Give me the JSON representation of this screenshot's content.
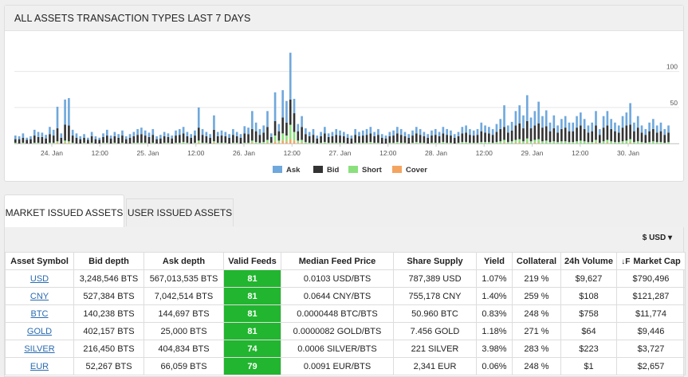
{
  "panel": {
    "title": "ALL ASSETS TRANSACTION TYPES LAST 7 DAYS"
  },
  "tabs": {
    "market": "MARKET ISSUED ASSETS",
    "user": "USER ISSUED ASSETS"
  },
  "currency_selector": "$ USD ▾",
  "sort_icon": "↓F",
  "table": {
    "headers": [
      "Asset Symbol",
      "Bid depth",
      "Ask depth",
      "Valid Feeds",
      "Median Feed Price",
      "Share Supply",
      "Yield",
      "Collateral",
      "24h Volume",
      "Market Cap"
    ],
    "rows": [
      [
        "USD",
        "3,248,546 BTS",
        "567,013,535 BTS",
        "81",
        "0.0103 USD/BTS",
        "787,389 USD",
        "1.07%",
        "219 %",
        "$9,627",
        "$790,496"
      ],
      [
        "CNY",
        "527,384 BTS",
        "7,042,514 BTS",
        "81",
        "0.0644 CNY/BTS",
        "755,178 CNY",
        "1.40%",
        "259 %",
        "$108",
        "$121,287"
      ],
      [
        "BTC",
        "140,238 BTS",
        "144,697 BTS",
        "81",
        "0.0000448 BTC/BTS",
        "50.960 BTC",
        "0.83%",
        "248 %",
        "$758",
        "$11,774"
      ],
      [
        "GOLD",
        "402,157 BTS",
        "25,000 BTS",
        "81",
        "0.0000082 GOLD/BTS",
        "7.456 GOLD",
        "1.18%",
        "271 %",
        "$64",
        "$9,446"
      ],
      [
        "SILVER",
        "216,450 BTS",
        "404,834 BTS",
        "74",
        "0.0006 SILVER/BTS",
        "221 SILVER",
        "3.98%",
        "283 %",
        "$223",
        "$3,727"
      ],
      [
        "EUR",
        "52,267 BTS",
        "66,059 BTS",
        "79",
        "0.0091 EUR/BTS",
        "2,341 EUR",
        "0.06%",
        "248 %",
        "$1",
        "$2,657"
      ]
    ]
  },
  "chart_data": {
    "type": "bar",
    "stacked": true,
    "x_tick_labels": [
      "24. Jan",
      "12:00",
      "25. Jan",
      "12:00",
      "26. Jan",
      "12:00",
      "27. Jan",
      "12:00",
      "28. Jan",
      "12:00",
      "29. Jan",
      "12:00",
      "30. Jan"
    ],
    "y_tick_labels": [
      "50",
      "100"
    ],
    "ylim": [
      0,
      135
    ],
    "legend_position": "bottom-center",
    "colors": {
      "Ask": "#6fa8dc",
      "Bid": "#333333",
      "Short": "#8be07d",
      "Cover": "#f4a460"
    },
    "series": [
      {
        "name": "Ask",
        "values": [
          5,
          4,
          6,
          3,
          4,
          8,
          7,
          6,
          5,
          10,
          8,
          30,
          6,
          35,
          38,
          8,
          6,
          4,
          5,
          3,
          6,
          4,
          3,
          5,
          8,
          4,
          6,
          5,
          7,
          4,
          5,
          6,
          8,
          9,
          7,
          6,
          8,
          4,
          5,
          6,
          5,
          4,
          7,
          8,
          9,
          6,
          5,
          7,
          28,
          8,
          6,
          5,
          20,
          6,
          7,
          6,
          5,
          8,
          6,
          5,
          10,
          9,
          25,
          12,
          8,
          10,
          22,
          5,
          40,
          10,
          38,
          30,
          65,
          20,
          10,
          15,
          8,
          6,
          8,
          4,
          6,
          9,
          5,
          6,
          8,
          7,
          6,
          5,
          4,
          8,
          6,
          7,
          8,
          9,
          6,
          8,
          5,
          4,
          6,
          7,
          9,
          8,
          6,
          5,
          7,
          9,
          8,
          6,
          5,
          7,
          8,
          6,
          9,
          8,
          7,
          5,
          6,
          9,
          10,
          8,
          7,
          8,
          12,
          10,
          9,
          8,
          11,
          14,
          30,
          10,
          12,
          20,
          25,
          18,
          36,
          15,
          20,
          30,
          16,
          22,
          12,
          18,
          10,
          14,
          16,
          12,
          12,
          16,
          18,
          14,
          10,
          12,
          20,
          8,
          16,
          20,
          14,
          12,
          10,
          16,
          18,
          30,
          12,
          16,
          10,
          8,
          12,
          14,
          10,
          12,
          8,
          10
        ]
      },
      {
        "name": "Bid",
        "values": [
          5,
          6,
          7,
          5,
          6,
          10,
          8,
          9,
          7,
          12,
          10,
          18,
          8,
          22,
          22,
          10,
          8,
          6,
          7,
          5,
          9,
          6,
          5,
          8,
          10,
          7,
          9,
          8,
          10,
          6,
          8,
          9,
          11,
          12,
          10,
          9,
          11,
          6,
          7,
          9,
          8,
          7,
          10,
          11,
          12,
          9,
          8,
          10,
          18,
          11,
          9,
          8,
          16,
          9,
          10,
          9,
          8,
          11,
          9,
          8,
          13,
          12,
          16,
          15,
          11,
          13,
          18,
          8,
          20,
          13,
          22,
          18,
          35,
          26,
          13,
          18,
          11,
          9,
          11,
          7,
          9,
          12,
          8,
          9,
          11,
          10,
          9,
          8,
          7,
          11,
          9,
          10,
          11,
          12,
          9,
          11,
          8,
          7,
          9,
          10,
          12,
          11,
          9,
          8,
          10,
          12,
          11,
          9,
          8,
          10,
          11,
          9,
          12,
          11,
          10,
          8,
          9,
          12,
          13,
          11,
          10,
          11,
          15,
          13,
          12,
          11,
          14,
          17,
          18,
          13,
          15,
          20,
          22,
          18,
          24,
          18,
          20,
          22,
          19,
          20,
          15,
          18,
          13,
          17,
          19,
          15,
          15,
          19,
          21,
          17,
          13,
          15,
          20,
          11,
          19,
          20,
          17,
          15,
          13,
          19,
          21,
          20,
          15,
          19,
          13,
          11,
          15,
          17,
          13,
          15,
          11,
          13
        ]
      },
      {
        "name": "Short",
        "values": [
          1,
          0,
          1,
          0,
          0,
          1,
          1,
          0,
          0,
          1,
          1,
          2,
          0,
          3,
          2,
          1,
          0,
          0,
          1,
          0,
          1,
          0,
          0,
          1,
          1,
          0,
          1,
          0,
          1,
          0,
          0,
          1,
          1,
          1,
          1,
          0,
          1,
          0,
          0,
          1,
          1,
          0,
          1,
          1,
          2,
          1,
          0,
          1,
          3,
          1,
          1,
          0,
          2,
          1,
          1,
          1,
          0,
          1,
          1,
          0,
          1,
          1,
          3,
          2,
          1,
          2,
          4,
          1,
          8,
          3,
          10,
          8,
          20,
          12,
          3,
          4,
          2,
          1,
          1,
          0,
          1,
          2,
          1,
          1,
          1,
          1,
          1,
          0,
          0,
          1,
          1,
          1,
          1,
          2,
          1,
          1,
          0,
          0,
          1,
          1,
          2,
          1,
          1,
          0,
          1,
          2,
          1,
          1,
          0,
          1,
          1,
          1,
          2,
          1,
          1,
          0,
          1,
          2,
          2,
          1,
          1,
          1,
          2,
          2,
          2,
          1,
          2,
          3,
          4,
          2,
          3,
          4,
          5,
          3,
          6,
          3,
          4,
          5,
          3,
          4,
          2,
          3,
          2,
          3,
          3,
          2,
          2,
          3,
          4,
          3,
          2,
          2,
          4,
          1,
          3,
          4,
          3,
          2,
          2,
          3,
          4,
          5,
          2,
          3,
          2,
          1,
          2,
          3,
          2,
          2,
          1,
          2
        ]
      },
      {
        "name": "Cover",
        "values": [
          0,
          0,
          0,
          0,
          0,
          0,
          0,
          0,
          0,
          0,
          0,
          1,
          0,
          1,
          1,
          0,
          0,
          0,
          0,
          0,
          0,
          0,
          0,
          0,
          0,
          0,
          0,
          0,
          0,
          0,
          0,
          0,
          0,
          0,
          0,
          0,
          0,
          0,
          0,
          0,
          0,
          0,
          0,
          0,
          0,
          0,
          0,
          0,
          1,
          0,
          0,
          0,
          1,
          0,
          0,
          0,
          0,
          0,
          0,
          0,
          0,
          0,
          1,
          0,
          0,
          0,
          1,
          0,
          3,
          1,
          4,
          3,
          6,
          4,
          1,
          1,
          0,
          0,
          0,
          0,
          0,
          0,
          0,
          0,
          0,
          0,
          0,
          0,
          0,
          0,
          0,
          0,
          0,
          0,
          0,
          0,
          0,
          0,
          0,
          0,
          0,
          0,
          0,
          0,
          0,
          0,
          0,
          0,
          0,
          0,
          0,
          0,
          0,
          0,
          0,
          0,
          0,
          0,
          0,
          0,
          0,
          0,
          0,
          0,
          0,
          0,
          0,
          0,
          1,
          0,
          0,
          1,
          1,
          0,
          1,
          0,
          1,
          1,
          0,
          0,
          0,
          0,
          0,
          0,
          0,
          0,
          0,
          0,
          0,
          0,
          0,
          0,
          1,
          0,
          0,
          1,
          0,
          0,
          0,
          0,
          0,
          1,
          0,
          0,
          0,
          0,
          0,
          0,
          0,
          0,
          0,
          0
        ]
      }
    ]
  }
}
